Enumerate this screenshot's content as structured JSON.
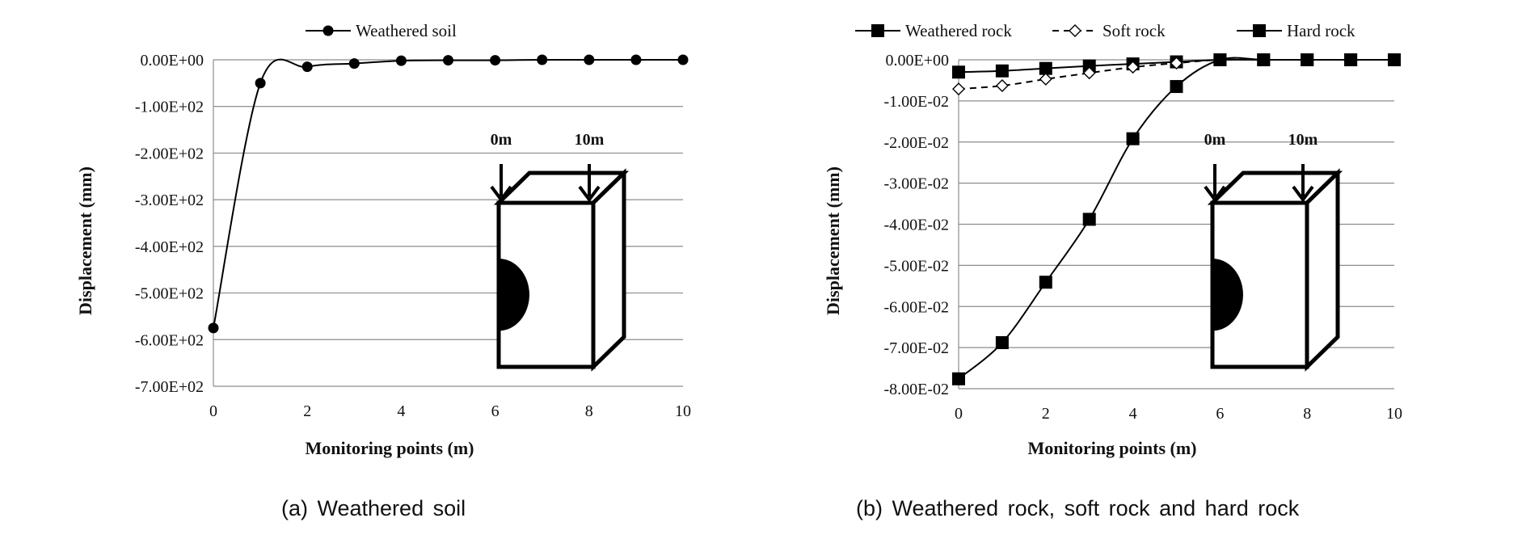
{
  "chart_data": [
    {
      "type": "line",
      "xlabel": "Monitoring points (m)",
      "ylabel": "Displacement (mm)",
      "xlim": [
        0,
        10
      ],
      "ylim": [
        -700,
        0
      ],
      "x_ticks": [
        0,
        2,
        4,
        6,
        8,
        10
      ],
      "y_ticks": [
        0,
        -100,
        -200,
        -300,
        -400,
        -500,
        -600,
        -700
      ],
      "y_tick_labels": [
        "0.00E+00",
        "-1.00E+02",
        "-2.00E+02",
        "-3.00E+02",
        "-4.00E+02",
        "-5.00E+02",
        "-6.00E+02",
        "-7.00E+02"
      ],
      "grid": "horizontal",
      "legend_position": "top",
      "x": [
        0,
        1,
        2,
        3,
        4,
        5,
        6,
        7,
        8,
        9,
        10
      ],
      "series": [
        {
          "name": "Weathered soil",
          "marker": "circle",
          "dashed": false,
          "values": [
            -575,
            -50,
            -15,
            -8,
            -2,
            -1,
            -1,
            0,
            0,
            0,
            0
          ]
        }
      ],
      "inset": {
        "label_left": "0m",
        "label_right": "10m"
      },
      "caption": "(a)  Weathered  soil"
    },
    {
      "type": "line",
      "xlabel": "Monitoring points (m)",
      "ylabel": "Displacement (mm)",
      "xlim": [
        0,
        10
      ],
      "ylim": [
        -0.08,
        0
      ],
      "x_ticks": [
        0,
        2,
        4,
        6,
        8,
        10
      ],
      "y_ticks": [
        0,
        -0.01,
        -0.02,
        -0.03,
        -0.04,
        -0.05,
        -0.06,
        -0.07,
        -0.08
      ],
      "y_tick_labels": [
        "0.00E+00",
        "-1.00E-02",
        "-2.00E-02",
        "-3.00E-02",
        "-4.00E-02",
        "-5.00E-02",
        "-6.00E-02",
        "-7.00E-02",
        "-8.00E-02"
      ],
      "grid": "horizontal",
      "legend_position": "top",
      "x": [
        0,
        1,
        2,
        3,
        4,
        5,
        6,
        7,
        8,
        9,
        10
      ],
      "series": [
        {
          "name": "Weathered rock",
          "marker": "square",
          "dashed": false,
          "values": [
            -0.003,
            -0.0027,
            -0.0021,
            -0.0015,
            -0.001,
            -0.0005,
            0,
            0,
            0,
            0,
            0
          ]
        },
        {
          "name": "Soft rock",
          "marker": "diamond-open",
          "dashed": true,
          "values": [
            -0.0071,
            -0.0063,
            -0.0047,
            -0.0032,
            -0.0018,
            -0.0008,
            0,
            0,
            0,
            0,
            0
          ]
        },
        {
          "name": "Hard rock",
          "marker": "square",
          "dashed": false,
          "values": [
            -0.0776,
            -0.0688,
            -0.0541,
            -0.0388,
            -0.0192,
            -0.0065,
            0,
            0,
            0,
            0,
            0
          ]
        }
      ],
      "inset": {
        "label_left": "0m",
        "label_right": "10m"
      },
      "caption": "(b)  Weathered  rock,  soft  rock  and  hard  rock"
    }
  ]
}
